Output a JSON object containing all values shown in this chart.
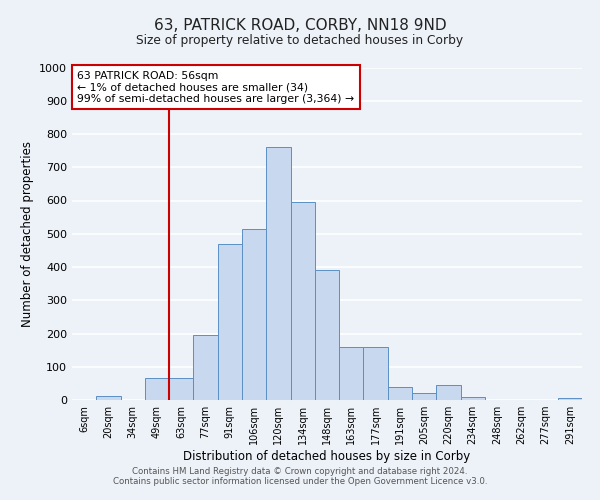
{
  "title": "63, PATRICK ROAD, CORBY, NN18 9ND",
  "subtitle": "Size of property relative to detached houses in Corby",
  "xlabel": "Distribution of detached houses by size in Corby",
  "ylabel": "Number of detached properties",
  "bar_labels": [
    "6sqm",
    "20sqm",
    "34sqm",
    "49sqm",
    "63sqm",
    "77sqm",
    "91sqm",
    "106sqm",
    "120sqm",
    "134sqm",
    "148sqm",
    "163sqm",
    "177sqm",
    "191sqm",
    "205sqm",
    "220sqm",
    "234sqm",
    "248sqm",
    "262sqm",
    "277sqm",
    "291sqm"
  ],
  "bar_values": [
    0,
    13,
    0,
    65,
    65,
    195,
    470,
    515,
    760,
    595,
    390,
    160,
    160,
    40,
    22,
    45,
    8,
    0,
    0,
    0,
    5
  ],
  "bar_color": "#c8d9ef",
  "bar_edge_color": "#5b8fc4",
  "background_color": "#edf2f9",
  "grid_color": "#ffffff",
  "vline_x_index": 4,
  "vline_color": "#cc0000",
  "annotation_line1": "63 PATRICK ROAD: 56sqm",
  "annotation_line2": "← 1% of detached houses are smaller (34)",
  "annotation_line3": "99% of semi-detached houses are larger (3,364) →",
  "annotation_box_color": "#ffffff",
  "annotation_box_edge": "#cc0000",
  "ylim": [
    0,
    1000
  ],
  "yticks": [
    0,
    100,
    200,
    300,
    400,
    500,
    600,
    700,
    800,
    900,
    1000
  ],
  "footnote1": "Contains HM Land Registry data © Crown copyright and database right 2024.",
  "footnote2": "Contains public sector information licensed under the Open Government Licence v3.0."
}
